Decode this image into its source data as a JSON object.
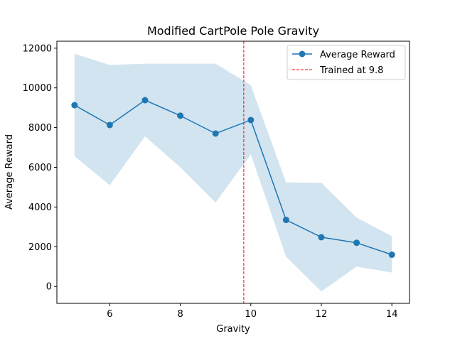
{
  "chart_data": {
    "type": "line",
    "title": "Modified CartPole Pole Gravity",
    "xlabel": "Gravity",
    "ylabel": "Average Reward",
    "xlim": [
      4.5,
      14.5
    ],
    "ylim": [
      -850,
      12350
    ],
    "xticks": [
      6,
      8,
      10,
      12,
      14
    ],
    "yticks": [
      0,
      2000,
      4000,
      6000,
      8000,
      10000,
      12000
    ],
    "grid": false,
    "legend_position": "top-right",
    "series": [
      {
        "name": "Average Reward",
        "color": "#1f77b4",
        "x": [
          5,
          6,
          7,
          8,
          9,
          10,
          11,
          12,
          13,
          14
        ],
        "y": [
          9130,
          8130,
          9380,
          8600,
          7700,
          8380,
          3350,
          2480,
          2200,
          1600
        ],
        "band_upper": [
          11720,
          11150,
          11220,
          11220,
          11220,
          10130,
          5240,
          5220,
          3470,
          2530
        ],
        "band_lower": [
          6560,
          5100,
          7560,
          6000,
          4230,
          6650,
          1500,
          -250,
          1000,
          700
        ],
        "band_color": "#1f77b4"
      }
    ],
    "annotations": [
      {
        "type": "vline",
        "x": 9.8,
        "label": "Trained at 9.8",
        "color": "#ff0000",
        "style": "dashed"
      }
    ]
  }
}
